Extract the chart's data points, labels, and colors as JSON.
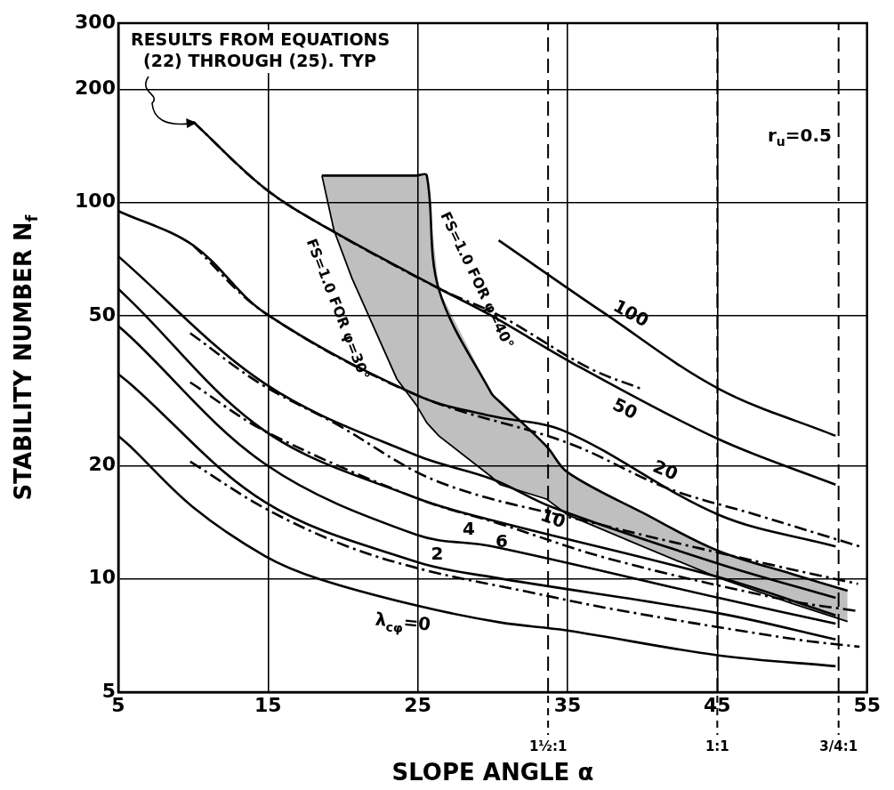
{
  "chart_data": {
    "type": "line",
    "xlabel": "SLOPE ANGLE α",
    "ylabel": "STABILITY NUMBER N$_{f}$",
    "xlim": [
      5,
      55
    ],
    "xticks": [
      5,
      15,
      25,
      35,
      45,
      55
    ],
    "ylim": [
      5,
      300
    ],
    "yticks": [
      5,
      10,
      20,
      50,
      100,
      200,
      300
    ],
    "log": "y",
    "grid": true,
    "legend": false,
    "marker": "none",
    "series": [
      {
        "name": "λ$_{cφ}$=0",
        "color": "#000000",
        "x": [
          5,
          5.8,
          10,
          14.8,
          18.4,
          24.9,
          30.5,
          34.9,
          45.1,
          52.9
        ],
        "values": [
          24,
          22.5,
          15.5,
          11.5,
          10,
          8.5,
          7.66,
          7.3,
          6.26,
          5.86
        ]
      },
      {
        "name": "2",
        "color": "#000000",
        "x": [
          5,
          5.8,
          14.8,
          24.9,
          30,
          45.1,
          52.9
        ],
        "values": [
          35,
          33,
          16,
          11.1,
          10.1,
          8.1,
          6.9
        ]
      },
      {
        "name": "4",
        "color": "#000000",
        "x": [
          5,
          5.8,
          14.8,
          24.9,
          30,
          45.1,
          52.9
        ],
        "values": [
          47,
          44,
          20.2,
          13.1,
          12.2,
          8.9,
          7.6
        ]
      },
      {
        "name": "6",
        "color": "#000000",
        "x": [
          5,
          5.8,
          14.8,
          24.9,
          30,
          45.1,
          52.9
        ],
        "values": [
          59,
          55,
          24.7,
          16.4,
          14.3,
          10.1,
          8
        ]
      },
      {
        "name": "10",
        "color": "#000000",
        "x": [
          5,
          14.8,
          24.9,
          30,
          34,
          45,
          52.9
        ],
        "values": [
          72,
          33,
          21.3,
          18.4,
          15.5,
          11,
          8.9
        ]
      },
      {
        "name": "20",
        "color": "#000000",
        "x": [
          5,
          10,
          14.8,
          25,
          29.9,
          34.8,
          45.1,
          52.9
        ],
        "values": [
          95,
          77,
          50.9,
          30.7,
          27.1,
          24.7,
          14.8,
          12.2
        ]
      },
      {
        "name": "50",
        "color": "#000000",
        "x": [
          10,
          14.8,
          19.2,
          26.5,
          29.9,
          35.9,
          45.1,
          52.9
        ],
        "values": [
          164,
          109,
          84.5,
          58.9,
          50.1,
          36.4,
          23.5,
          17.8
        ]
      },
      {
        "name": "100",
        "color": "#000000",
        "x": [
          30.4,
          37.4,
          45.1,
          52.9
        ],
        "values": [
          79.4,
          51,
          32,
          24
        ]
      },
      {
        "color": "#000000",
        "line_style": "dashed",
        "x": [
          9.8,
          14.8,
          20.3,
          25.7,
          32,
          38.1,
          50.3,
          54.5
        ],
        "values": [
          20.5,
          15.4,
          12.2,
          10.5,
          9.3,
          8.3,
          6.9,
          6.6
        ]
      },
      {
        "color": "#000000",
        "line_style": "dashed",
        "x": [
          9.8,
          14.8,
          24.9,
          30.5,
          37.8,
          49.5,
          54.5
        ],
        "values": [
          33.3,
          24.7,
          16.4,
          14,
          11.3,
          8.8,
          8.2
        ]
      },
      {
        "color": "#000000",
        "line_style": "dashed",
        "x": [
          9.8,
          14.5,
          19.4,
          26.4,
          37,
          48.6,
          54.4
        ],
        "values": [
          45,
          33,
          26,
          18.1,
          14,
          10.9,
          9.7
        ]
      },
      {
        "color": "#000000",
        "line_style": "dashed",
        "x": [
          10,
          14.8,
          25,
          35,
          41.7,
          47.6,
          54.5
        ],
        "values": [
          77,
          50.9,
          30.7,
          23,
          17.4,
          14.8,
          12.2
        ]
      },
      {
        "color": "#000000",
        "line_style": "dashed",
        "x": [
          10,
          14.8,
          19.2,
          26.5,
          30.5,
          36.4,
          40.1
        ],
        "values": [
          164,
          109,
          84.5,
          58.9,
          50,
          36.4,
          31.8
        ]
      },
      {
        "color": "#000000",
        "x": [
          18.6,
          19.4,
          20.6,
          23.6,
          24.9,
          25.6,
          26.4,
          29.9,
          30.5,
          33.6,
          35,
          40,
          45,
          50,
          53.7
        ],
        "values": [
          118,
          84.5,
          63,
          34,
          29,
          26,
          24,
          18.7,
          17.8,
          16.3,
          14.8,
          12.2,
          10.1,
          8.6,
          7.7
        ],
        "lower": [
          118,
          84.5,
          63,
          34,
          29,
          26,
          24,
          18.7,
          17.8,
          16.3,
          14.8,
          12.2,
          10.1,
          8.6,
          7.7
        ],
        "upper": [
          118,
          118,
          118,
          118,
          118,
          118,
          58.9,
          31.2,
          29.5,
          22.5,
          19.2,
          15,
          11.9,
          10.3,
          9.3
        ]
      },
      {
        "color": "#000000",
        "x": [
          18.6,
          19.4,
          20.6,
          23.6,
          24.9,
          25.6,
          26.4,
          29.9,
          30.5,
          33.6,
          35,
          40,
          45,
          50,
          53.7
        ],
        "values": [
          118,
          118,
          118,
          118,
          118,
          118,
          58.9,
          31.2,
          29.5,
          22.5,
          19.2,
          15,
          11.9,
          10.3,
          9.3
        ]
      }
    ],
    "ref_lines": [
      {
        "axis": "x",
        "value": 33.7,
        "line_style": "dashed"
      },
      {
        "axis": "x",
        "value": 45,
        "line_style": "dashed"
      },
      {
        "axis": "x",
        "value": 53.1,
        "line_style": "dashed"
      }
    ],
    "annotations": [
      {
        "text": "RESULTS FROM EQUATIONS (22) THROUGH (25). TYP",
        "x": 10,
        "y": 164
      },
      "r$_{u}$=0.5",
      "FS=1.0 FOR φ=30°",
      "FS=1.0 FOR φ=40°",
      "1½:1",
      "1:1",
      "3/4:1"
    ]
  }
}
